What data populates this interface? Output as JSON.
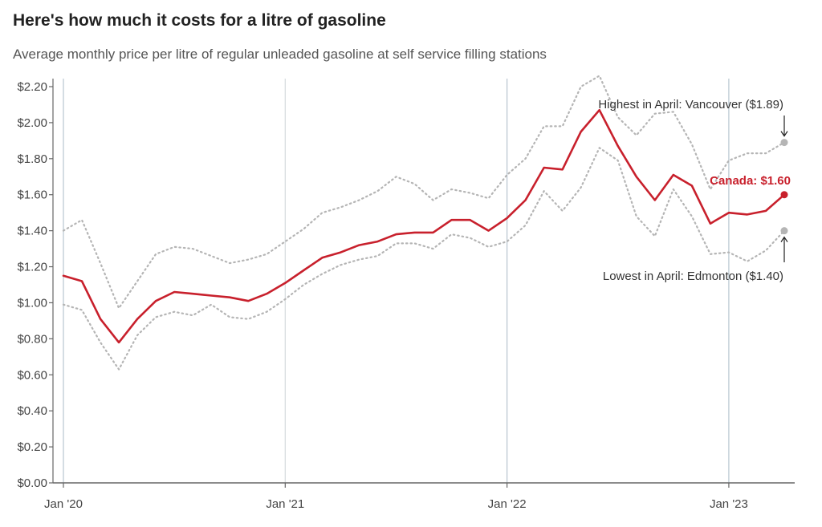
{
  "chart_data": {
    "type": "line",
    "title": "Here's how much it costs for a litre of gasoline",
    "subtitle": "Average monthly price per litre of regular unleaded gasoline at self service filling stations",
    "x": [
      "2020-01",
      "2020-02",
      "2020-03",
      "2020-04",
      "2020-05",
      "2020-06",
      "2020-07",
      "2020-08",
      "2020-09",
      "2020-10",
      "2020-11",
      "2020-12",
      "2021-01",
      "2021-02",
      "2021-03",
      "2021-04",
      "2021-05",
      "2021-06",
      "2021-07",
      "2021-08",
      "2021-09",
      "2021-10",
      "2021-11",
      "2021-12",
      "2022-01",
      "2022-02",
      "2022-03",
      "2022-04",
      "2022-05",
      "2022-06",
      "2022-07",
      "2022-08",
      "2022-09",
      "2022-10",
      "2022-11",
      "2022-12",
      "2023-01",
      "2023-02",
      "2023-03",
      "2023-04"
    ],
    "x_tick_labels": [
      "Jan '20",
      "Jan '21",
      "Jan '22",
      "Jan '23"
    ],
    "y_tick_labels": [
      "$0.00",
      "$0.20",
      "$0.40",
      "$0.60",
      "$0.80",
      "$1.00",
      "$1.20",
      "$1.40",
      "$1.60",
      "$1.80",
      "$2.00",
      "$2.20"
    ],
    "ylim": [
      0,
      2.25
    ],
    "grid": "vertical lines at each January",
    "series": [
      {
        "name": "Canada",
        "color": "#c8202c",
        "style": "solid",
        "values": [
          1.15,
          1.12,
          0.91,
          0.78,
          0.91,
          1.01,
          1.06,
          1.05,
          1.04,
          1.03,
          1.01,
          1.05,
          1.11,
          1.18,
          1.25,
          1.28,
          1.32,
          1.34,
          1.38,
          1.39,
          1.39,
          1.46,
          1.46,
          1.4,
          1.47,
          1.57,
          1.75,
          1.74,
          1.95,
          2.07,
          1.87,
          1.7,
          1.57,
          1.71,
          1.65,
          1.44,
          1.5,
          1.49,
          1.51,
          1.6
        ]
      },
      {
        "name": "Highest",
        "color": "#b5b5b5",
        "style": "dotted",
        "values": [
          1.4,
          1.46,
          1.22,
          0.97,
          1.12,
          1.27,
          1.31,
          1.3,
          1.26,
          1.22,
          1.24,
          1.27,
          1.34,
          1.41,
          1.5,
          1.53,
          1.57,
          1.62,
          1.7,
          1.66,
          1.57,
          1.63,
          1.61,
          1.58,
          1.71,
          1.8,
          1.98,
          1.98,
          2.2,
          2.26,
          2.03,
          1.93,
          2.05,
          2.06,
          1.88,
          1.63,
          1.79,
          1.83,
          1.83,
          1.89
        ]
      },
      {
        "name": "Lowest",
        "color": "#b5b5b5",
        "style": "dotted",
        "values": [
          0.99,
          0.96,
          0.78,
          0.63,
          0.82,
          0.92,
          0.95,
          0.93,
          0.99,
          0.92,
          0.91,
          0.95,
          1.02,
          1.1,
          1.16,
          1.21,
          1.24,
          1.26,
          1.33,
          1.33,
          1.3,
          1.38,
          1.36,
          1.31,
          1.34,
          1.43,
          1.62,
          1.51,
          1.64,
          1.86,
          1.79,
          1.48,
          1.37,
          1.63,
          1.48,
          1.27,
          1.28,
          1.23,
          1.29,
          1.4
        ]
      }
    ],
    "annotations": {
      "highest": "Highest in April: Vancouver ($1.89)",
      "canada": "Canada: $1.60",
      "lowest": "Lowest in April: Edmonton ($1.40)"
    }
  }
}
